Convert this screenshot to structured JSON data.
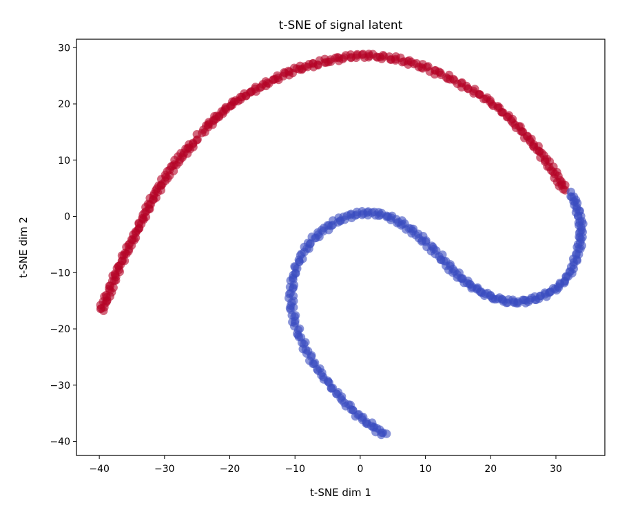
{
  "chart_data": {
    "type": "scatter",
    "title": "t-SNE of signal latent",
    "xlabel": "t-SNE dim 1",
    "ylabel": "t-SNE dim 2",
    "xlim": [
      -43.5,
      37.5
    ],
    "ylim": [
      -42.5,
      31.5
    ],
    "xticks": [
      -40,
      -30,
      -20,
      -10,
      0,
      10,
      20,
      30
    ],
    "yticks": [
      -40,
      -30,
      -20,
      -10,
      0,
      10,
      20,
      30
    ],
    "grid": false,
    "series": [
      {
        "color": "#b40426",
        "points": [
          [
            -39.8,
            -16.8
          ],
          [
            -39.2,
            -15.3
          ],
          [
            -38.6,
            -13.8
          ],
          [
            -38.0,
            -12.0
          ],
          [
            -37.4,
            -10.3
          ],
          [
            -36.8,
            -8.8
          ],
          [
            -36.1,
            -7.0
          ],
          [
            -35.4,
            -5.3
          ],
          [
            -34.7,
            -3.6
          ],
          [
            -34.0,
            -1.8
          ],
          [
            -33.3,
            -0.2
          ],
          [
            -32.6,
            1.4
          ],
          [
            -31.9,
            2.9
          ],
          [
            -31.1,
            4.5
          ],
          [
            -30.3,
            6.0
          ],
          [
            -29.4,
            7.6
          ],
          [
            -28.5,
            9.2
          ],
          [
            -27.5,
            10.6
          ],
          [
            -26.5,
            11.9
          ],
          [
            -25.6,
            13.0
          ],
          [
            -23.8,
            15.7
          ],
          [
            -22.8,
            16.8
          ],
          [
            -21.7,
            17.9
          ],
          [
            -20.5,
            19.1
          ],
          [
            -19.2,
            20.3
          ],
          [
            -17.8,
            21.4
          ],
          [
            -16.3,
            22.5
          ],
          [
            -14.7,
            23.5
          ],
          [
            -13.1,
            24.4
          ],
          [
            -11.5,
            25.3
          ],
          [
            -9.8,
            26.1
          ],
          [
            -8.1,
            26.7
          ],
          [
            -6.3,
            27.3
          ],
          [
            -4.5,
            27.8
          ],
          [
            -2.7,
            28.2
          ],
          [
            -0.8,
            28.5
          ],
          [
            1.0,
            28.6
          ],
          [
            2.9,
            28.4
          ],
          [
            4.8,
            28.2
          ],
          [
            6.7,
            27.7
          ],
          [
            8.6,
            27.0
          ],
          [
            10.5,
            26.2
          ],
          [
            12.4,
            25.3
          ],
          [
            14.3,
            24.3
          ],
          [
            16.2,
            23.1
          ],
          [
            18.0,
            21.9
          ],
          [
            19.7,
            20.5
          ],
          [
            21.3,
            19.0
          ],
          [
            22.8,
            17.5
          ],
          [
            24.2,
            15.9
          ],
          [
            25.5,
            14.3
          ],
          [
            26.7,
            12.7
          ],
          [
            27.8,
            11.1
          ],
          [
            28.8,
            9.4
          ],
          [
            29.8,
            7.7
          ],
          [
            30.6,
            6.0
          ],
          [
            31.3,
            5.0
          ]
        ]
      },
      {
        "color": "#3b4cc0",
        "points": [
          [
            32.3,
            4.0
          ],
          [
            32.9,
            2.5
          ],
          [
            33.4,
            0.9
          ],
          [
            33.8,
            -0.8
          ],
          [
            33.9,
            -2.5
          ],
          [
            33.8,
            -4.3
          ],
          [
            33.5,
            -6.1
          ],
          [
            32.9,
            -8.0
          ],
          [
            32.2,
            -9.9
          ],
          [
            31.2,
            -11.5
          ],
          [
            30.0,
            -12.8
          ],
          [
            28.6,
            -13.8
          ],
          [
            27.1,
            -14.6
          ],
          [
            25.6,
            -15.0
          ],
          [
            24.0,
            -15.2
          ],
          [
            22.4,
            -15.0
          ],
          [
            20.8,
            -14.6
          ],
          [
            19.2,
            -13.9
          ],
          [
            17.8,
            -13.0
          ],
          [
            16.4,
            -11.9
          ],
          [
            15.1,
            -10.6
          ],
          [
            13.9,
            -9.2
          ],
          [
            12.7,
            -7.7
          ],
          [
            11.4,
            -6.1
          ],
          [
            10.0,
            -4.6
          ],
          [
            8.6,
            -3.1
          ],
          [
            7.1,
            -1.8
          ],
          [
            5.6,
            -0.7
          ],
          [
            4.0,
            0.1
          ],
          [
            2.3,
            0.5
          ],
          [
            0.6,
            0.6
          ],
          [
            -1.1,
            0.3
          ],
          [
            -2.8,
            -0.4
          ],
          [
            -4.4,
            -1.4
          ],
          [
            -5.9,
            -2.7
          ],
          [
            -7.3,
            -4.2
          ],
          [
            -8.5,
            -6.0
          ],
          [
            -9.5,
            -8.0
          ],
          [
            -10.2,
            -10.1
          ],
          [
            -10.5,
            -12.3
          ],
          [
            -10.6,
            -14.6
          ],
          [
            -10.4,
            -16.9
          ],
          [
            -9.9,
            -19.2
          ],
          [
            -9.2,
            -21.4
          ],
          [
            -8.3,
            -23.6
          ],
          [
            -7.3,
            -25.8
          ],
          [
            -6.1,
            -27.9
          ],
          [
            -4.8,
            -29.9
          ],
          [
            -3.4,
            -31.8
          ],
          [
            -1.9,
            -33.6
          ],
          [
            -0.4,
            -35.2
          ],
          [
            1.1,
            -36.6
          ],
          [
            2.5,
            -37.8
          ],
          [
            3.8,
            -39.0
          ]
        ]
      }
    ]
  }
}
